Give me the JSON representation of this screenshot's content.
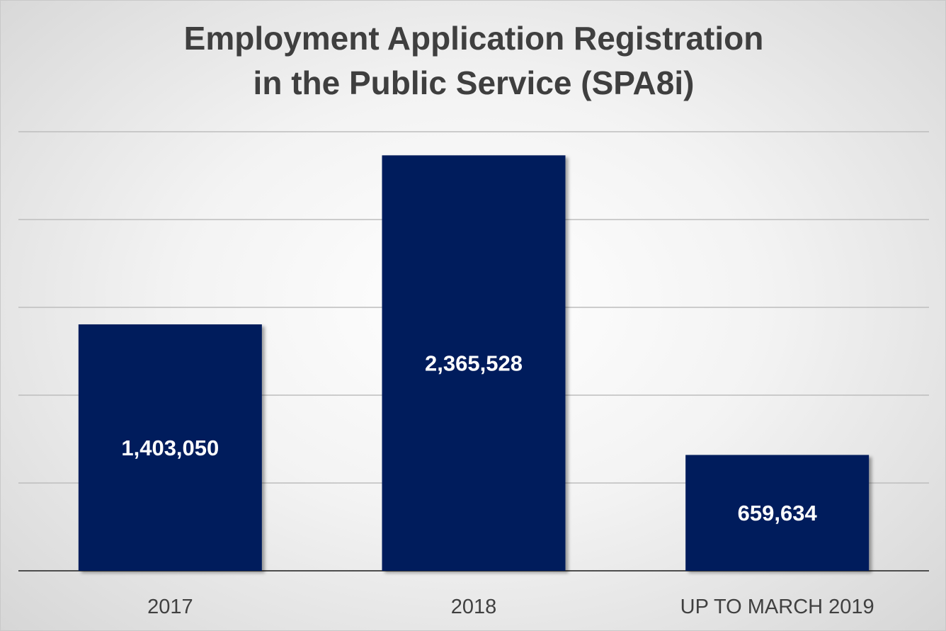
{
  "chart_data": {
    "type": "bar",
    "title": "Employment Application Registration in the Public Service (SPA8i)",
    "title_lines": [
      "Employment Application Registration",
      "in the Public Service (SPA8i)"
    ],
    "categories": [
      "2017",
      "2018",
      "UP TO MARCH 2019"
    ],
    "values": [
      1403050,
      2365528,
      659634
    ],
    "data_labels": [
      "1,403,050",
      "2,365,528",
      "659,634"
    ],
    "xlabel": "",
    "ylabel": "",
    "ylim": [
      0,
      2500000
    ],
    "y_gridlines": [
      500000,
      1000000,
      1500000,
      2000000,
      2500000
    ],
    "y_tick_labels_shown": false,
    "grid": true,
    "legend": "none",
    "colors": {
      "bar": "#001f5b",
      "gridline": "#bdbdbd",
      "title": "#3f3f3f",
      "category_text": "#404040",
      "data_label": "#ffffff"
    }
  }
}
